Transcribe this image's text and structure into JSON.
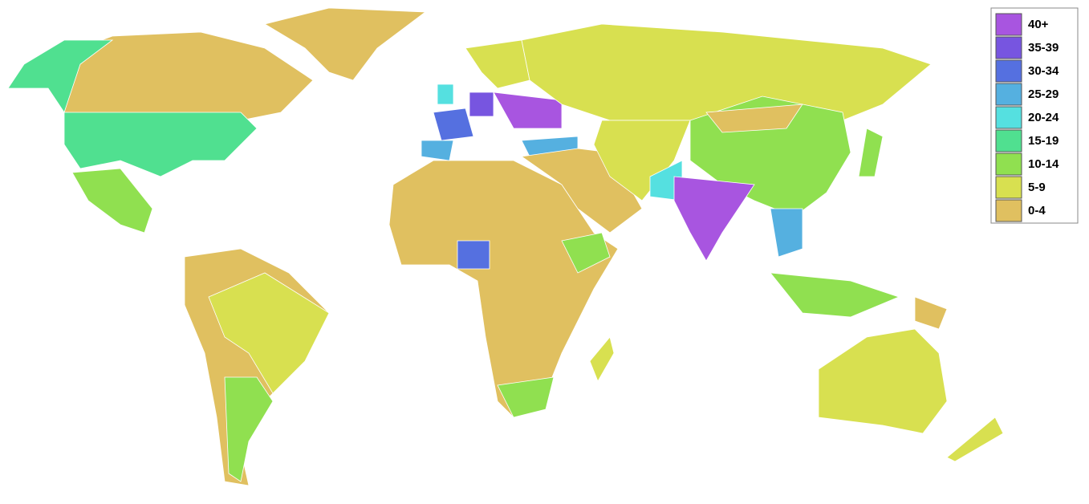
{
  "legend": {
    "items": [
      {
        "label": "40+",
        "color": "#a855e0"
      },
      {
        "label": "35-39",
        "color": "#7755e0"
      },
      {
        "label": "30-34",
        "color": "#5570e0"
      },
      {
        "label": "25-29",
        "color": "#55b0e0"
      },
      {
        "label": "20-24",
        "color": "#55e0e0"
      },
      {
        "label": "15-19",
        "color": "#50e090"
      },
      {
        "label": "10-14",
        "color": "#90e050"
      },
      {
        "label": "5-9",
        "color": "#d8e050"
      },
      {
        "label": "0-4",
        "color": "#e0c060"
      }
    ]
  }
}
